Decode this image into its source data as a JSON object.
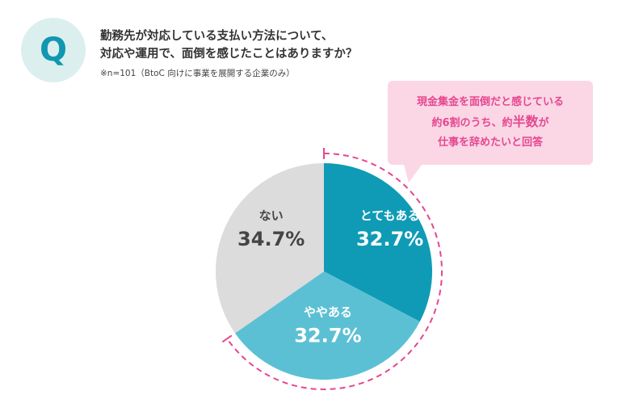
{
  "question": {
    "badge": "Q",
    "line1": "勤務先が対応している支払い方法について、",
    "line2": "対応や運用で、面倒を感じたことはありますか？",
    "note": "※n=101（BtoC 向けに事業を展開する企業のみ）"
  },
  "callout": {
    "line1": "現金集金を面倒だと感じている",
    "line2_pre": "約6割のうち、約",
    "line2_emph": "半数",
    "line2_post": "が",
    "line3": "仕事を辞めたいと回答"
  },
  "colors": {
    "accent": "#1197b0",
    "pink": "#e64790",
    "pink_bg": "#fbd7e6",
    "badge_bg": "#dcefef"
  },
  "chart_data": {
    "type": "pie",
    "title": "",
    "slices": [
      {
        "label": "とてもある",
        "value": 32.7,
        "display": "32.7%",
        "color": "#0f9bb5"
      },
      {
        "label": "ややある",
        "value": 32.7,
        "display": "32.7%",
        "color": "#5cc0d4"
      },
      {
        "label": "ない",
        "value": 34.7,
        "display": "34.7%",
        "color": "#dcdcdc"
      }
    ],
    "highlight": {
      "slices": [
        "とてもある",
        "ややある"
      ],
      "style": "dashed-arc",
      "color": "#e64790"
    }
  }
}
